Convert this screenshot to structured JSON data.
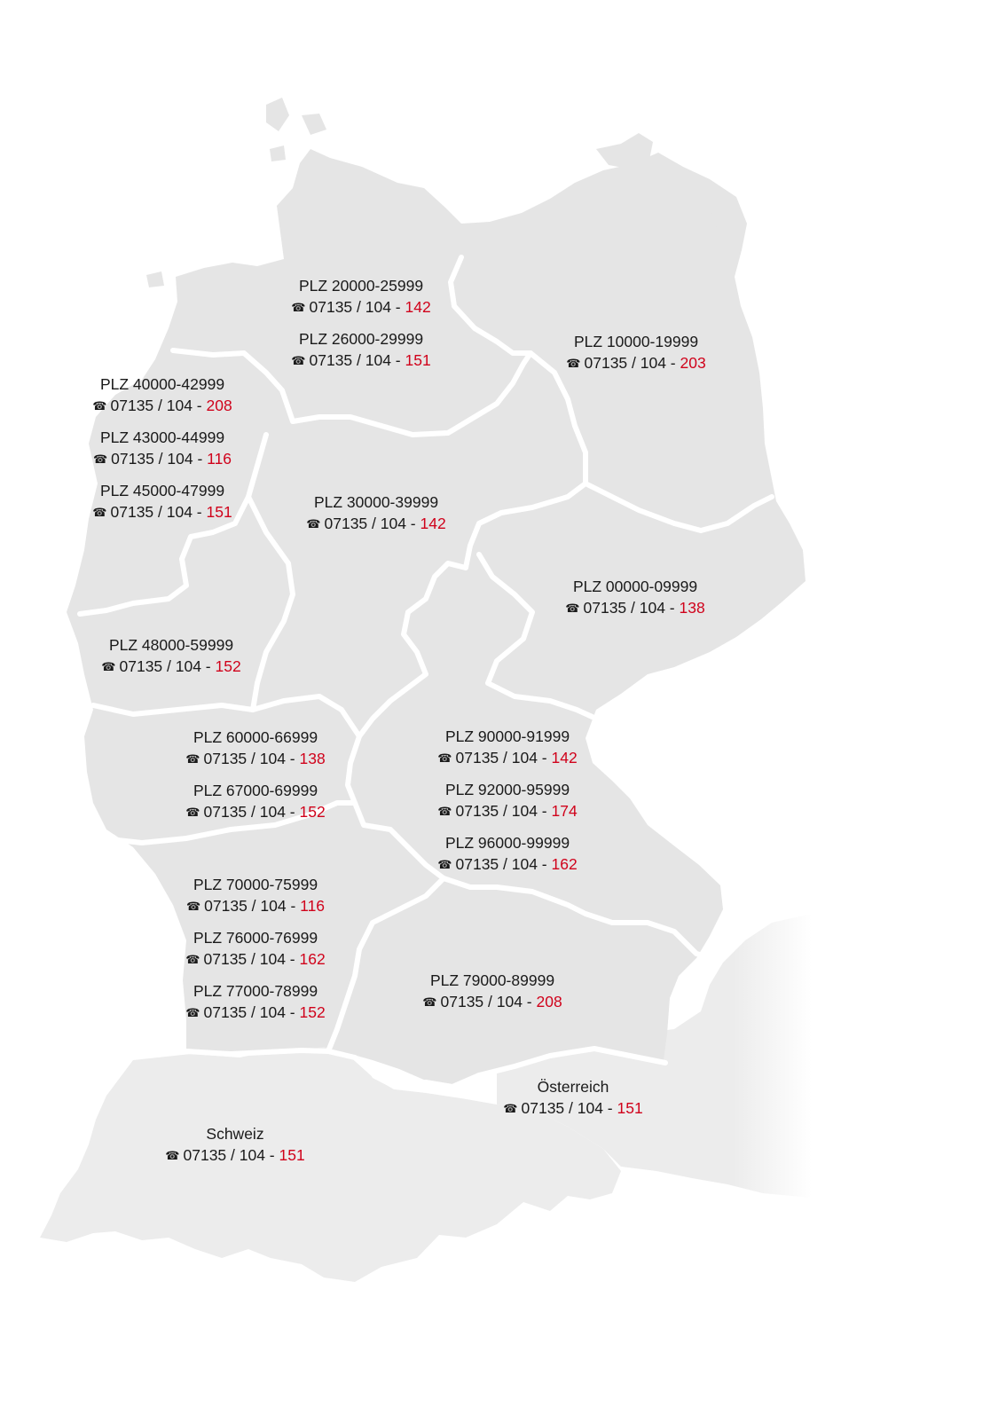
{
  "map": {
    "phone_icon": "telephone-icon",
    "extension_color": "#d0021b",
    "land_color": "#e5e5e5",
    "neighbor_color": "#ececec",
    "border_color": "#ffffff",
    "regions": [
      {
        "id": "plz-20-29",
        "entries": [
          {
            "plz": "PLZ 20000-25999",
            "phone": "07135 / 104 - ",
            "ext": "142"
          },
          {
            "plz": "PLZ 26000-29999",
            "phone": "07135 / 104 - ",
            "ext": "151"
          }
        ]
      },
      {
        "id": "plz-10-19",
        "entries": [
          {
            "plz": "PLZ 10000-19999",
            "phone": "07135 / 104 - ",
            "ext": "203"
          }
        ]
      },
      {
        "id": "plz-40-47",
        "entries": [
          {
            "plz": "PLZ 40000-42999",
            "phone": "07135 / 104 - ",
            "ext": "208"
          },
          {
            "plz": "PLZ 43000-44999",
            "phone": "07135 / 104 - ",
            "ext": "116"
          },
          {
            "plz": "PLZ 45000-47999",
            "phone": "07135 / 104 - ",
            "ext": "151"
          }
        ]
      },
      {
        "id": "plz-30-39",
        "entries": [
          {
            "plz": "PLZ 30000-39999",
            "phone": "07135 / 104 - ",
            "ext": "142"
          }
        ]
      },
      {
        "id": "plz-00-09",
        "entries": [
          {
            "plz": "PLZ 00000-09999",
            "phone": "07135 / 104 - ",
            "ext": "138"
          }
        ]
      },
      {
        "id": "plz-48-59",
        "entries": [
          {
            "plz": "PLZ 48000-59999",
            "phone": "07135 / 104 - ",
            "ext": "152"
          }
        ]
      },
      {
        "id": "plz-60-69",
        "entries": [
          {
            "plz": "PLZ 60000-66999",
            "phone": "07135 / 104 - ",
            "ext": "138"
          },
          {
            "plz": "PLZ 67000-69999",
            "phone": "07135 / 104 - ",
            "ext": "152"
          }
        ]
      },
      {
        "id": "plz-90-99",
        "entries": [
          {
            "plz": "PLZ 90000-91999",
            "phone": "07135 / 104 - ",
            "ext": "142"
          },
          {
            "plz": "PLZ 92000-95999",
            "phone": "07135 / 104 - ",
            "ext": "174"
          },
          {
            "plz": "PLZ 96000-99999",
            "phone": "07135 / 104 - ",
            "ext": "162"
          }
        ]
      },
      {
        "id": "plz-70-78",
        "entries": [
          {
            "plz": "PLZ 70000-75999",
            "phone": "07135 / 104 - ",
            "ext": "116"
          },
          {
            "plz": "PLZ 76000-76999",
            "phone": "07135 / 104 - ",
            "ext": "162"
          },
          {
            "plz": "PLZ 77000-78999",
            "phone": "07135 / 104 - ",
            "ext": "152"
          }
        ]
      },
      {
        "id": "plz-79-89",
        "entries": [
          {
            "plz": "PLZ 79000-89999",
            "phone": "07135 / 104 - ",
            "ext": "208"
          }
        ]
      },
      {
        "id": "austria",
        "entries": [
          {
            "plz": "Österreich",
            "phone": "07135 / 104 - ",
            "ext": "151"
          }
        ]
      },
      {
        "id": "switzerland",
        "entries": [
          {
            "plz": "Schweiz",
            "phone": "07135 / 104 - ",
            "ext": "151"
          }
        ]
      }
    ]
  }
}
